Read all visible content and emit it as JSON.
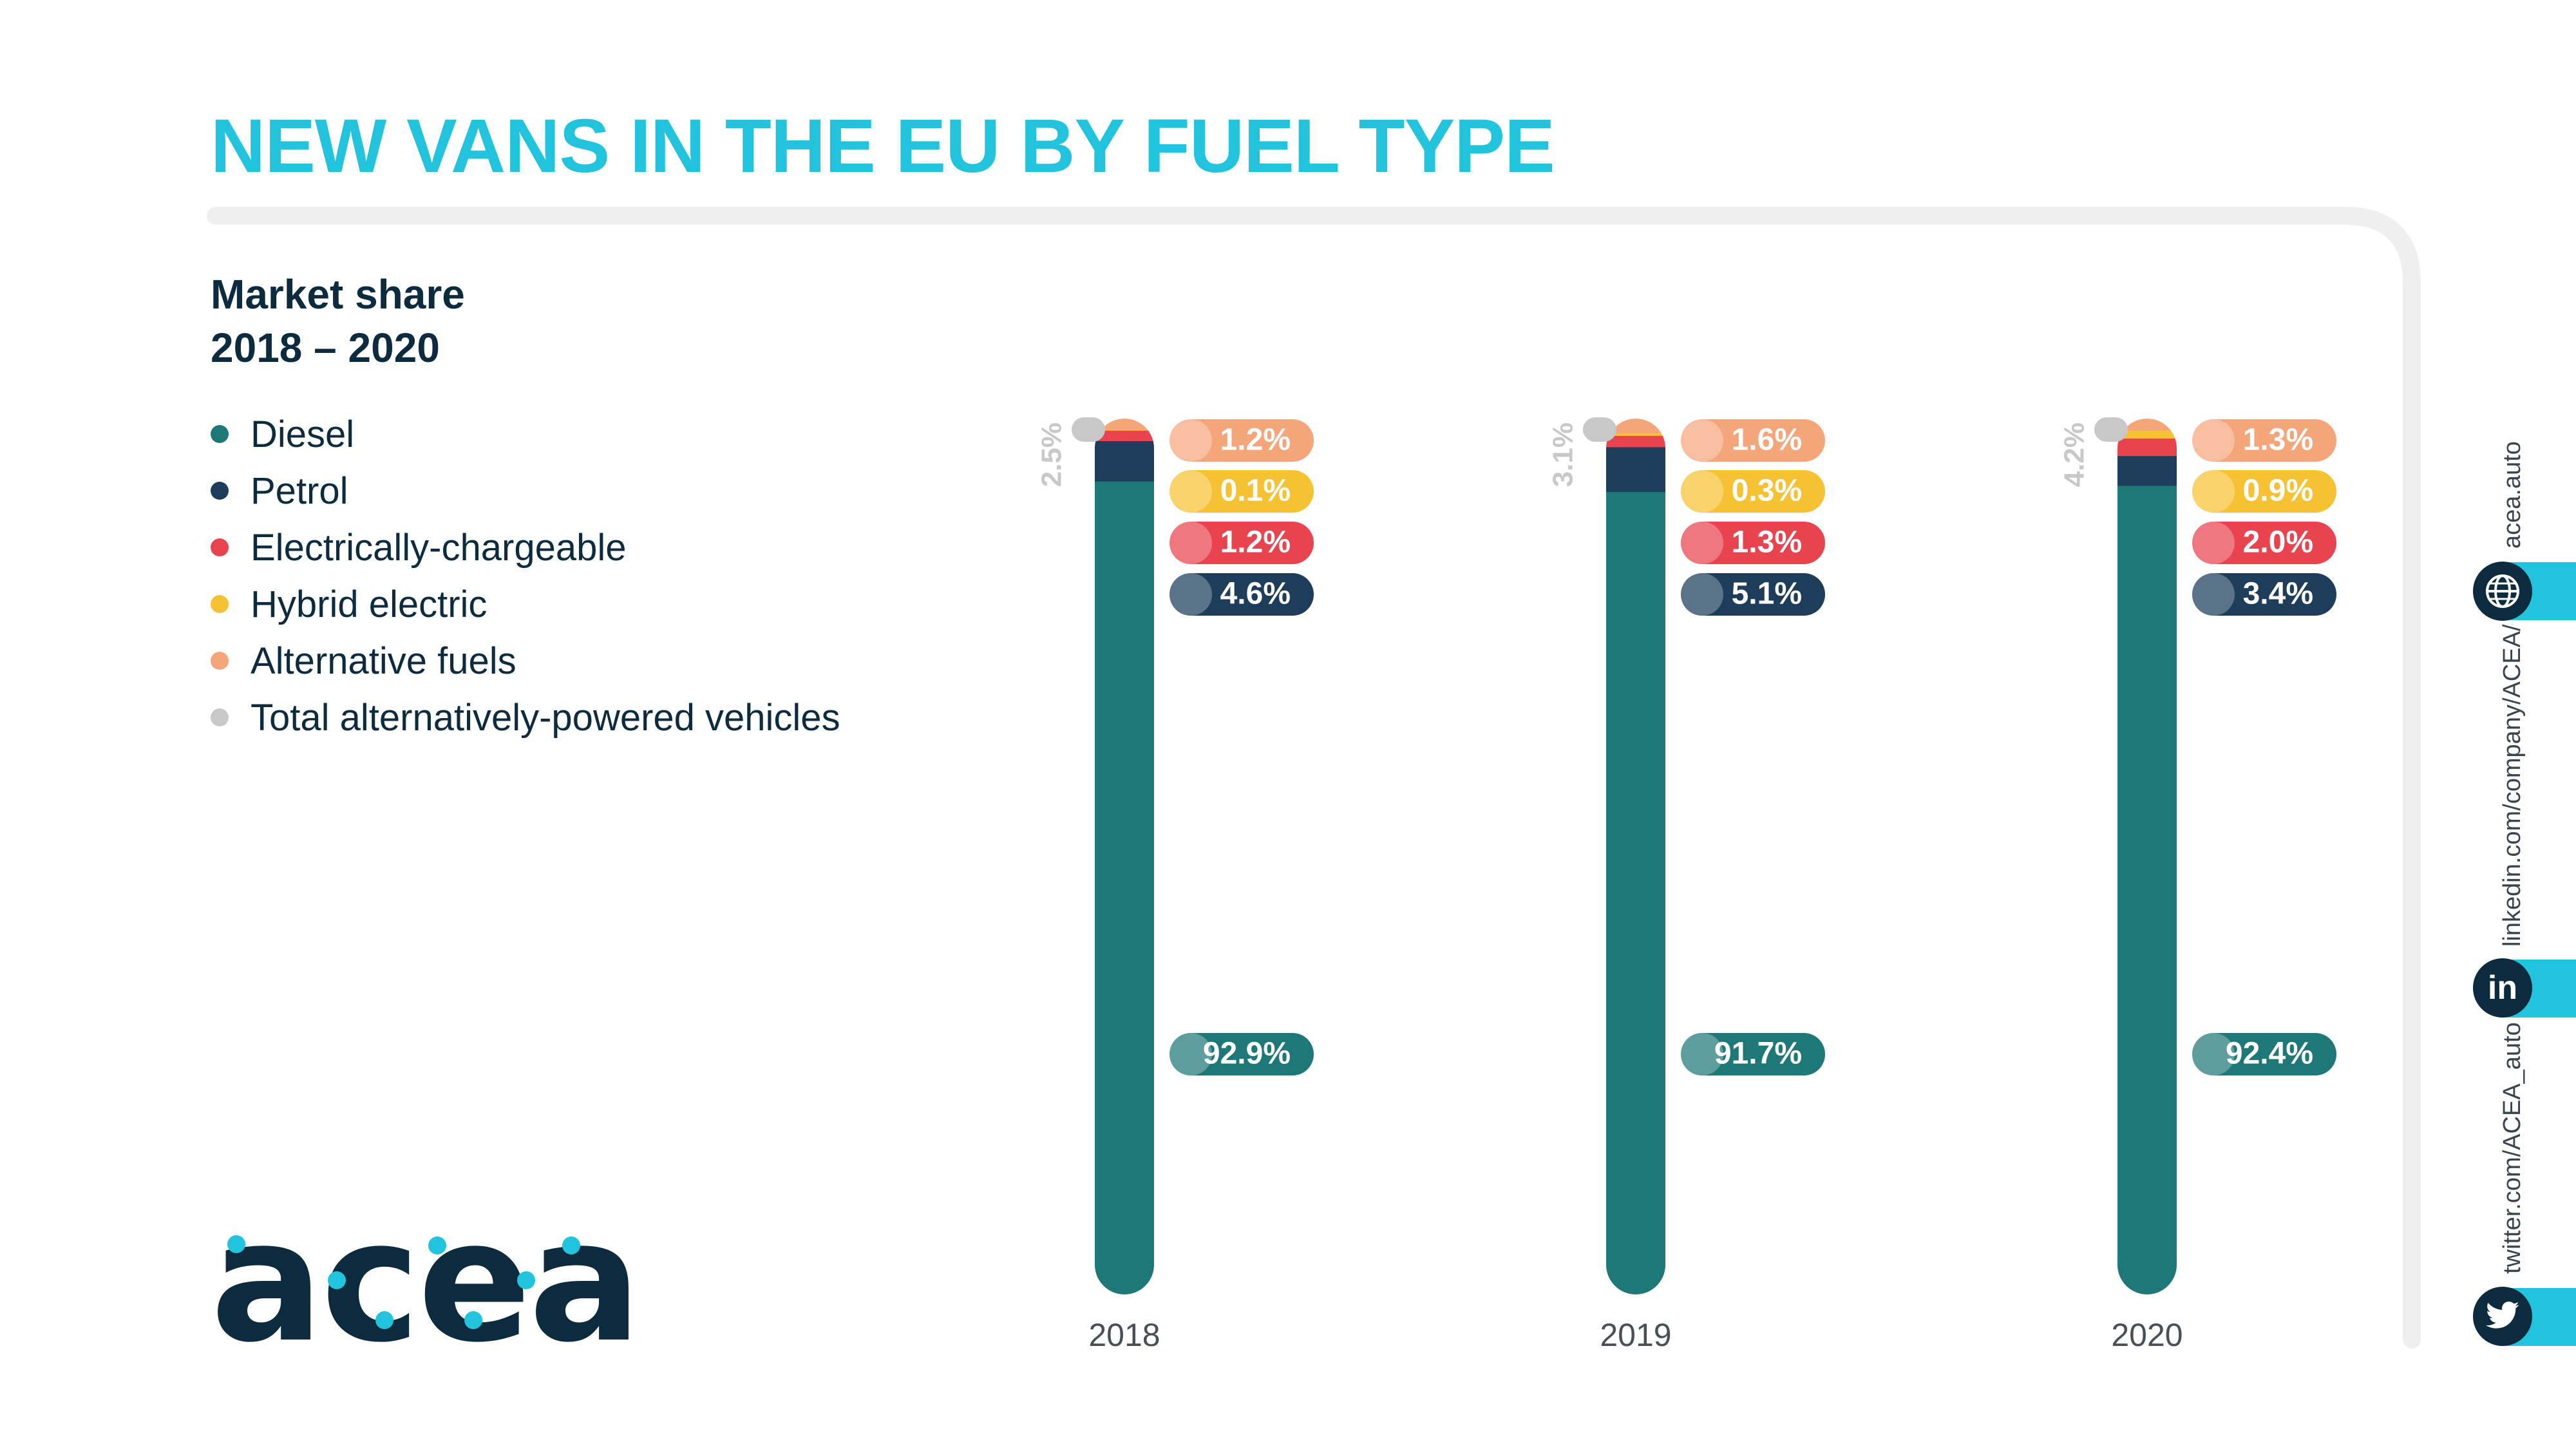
{
  "title": "NEW VANS IN THE EU BY FUEL TYPE",
  "subtitle": {
    "line1": "Market share",
    "line2": "2018 – 2020"
  },
  "legend": [
    {
      "label": "Diesel",
      "color": "#1f7878"
    },
    {
      "label": "Petrol",
      "color": "#1d3d5a"
    },
    {
      "label": "Electrically-chargeable",
      "color": "#e8434f"
    },
    {
      "label": "Hybrid electric",
      "color": "#f6c234"
    },
    {
      "label": "Alternative fuels",
      "color": "#f4a57a"
    },
    {
      "label": "Total alternatively-powered vehicles",
      "color": "#c8c8c8"
    }
  ],
  "chart_data": {
    "type": "bar",
    "stacked": true,
    "categories": [
      "2018",
      "2019",
      "2020"
    ],
    "series": [
      {
        "name": "Diesel",
        "values": [
          92.9,
          91.7,
          92.4
        ],
        "labels": [
          "92.9%",
          "91.7%",
          "92.4%"
        ],
        "color": "#1f7878"
      },
      {
        "name": "Petrol",
        "values": [
          4.6,
          5.1,
          3.4
        ],
        "labels": [
          "4.6%",
          "5.1%",
          "3.4%"
        ],
        "color": "#1d3d5a"
      },
      {
        "name": "Electrically-chargeable",
        "values": [
          1.2,
          1.3,
          2.0
        ],
        "labels": [
          "1.2%",
          "1.3%",
          "2.0%"
        ],
        "color": "#e8434f"
      },
      {
        "name": "Hybrid electric",
        "values": [
          0.1,
          0.3,
          0.9
        ],
        "labels": [
          "0.1%",
          "0.3%",
          "0.9%"
        ],
        "color": "#f6c234"
      },
      {
        "name": "Alternative fuels",
        "values": [
          1.2,
          1.6,
          1.3
        ],
        "labels": [
          "1.2%",
          "1.6%",
          "1.3%"
        ],
        "color": "#f4a57a"
      }
    ],
    "totals_alternatively_powered": {
      "values": [
        2.5,
        3.1,
        4.2
      ],
      "labels": [
        "2.5%",
        "3.1%",
        "4.2%"
      ],
      "color": "#c8c8c8"
    },
    "ylim": [
      0,
      100
    ],
    "grid": false,
    "legend_position": "left"
  },
  "logo": {
    "text": "acea",
    "color": "#0d2b3e",
    "accent": "#22c3dc"
  },
  "social": {
    "website": "acea.auto",
    "linkedin": "linkedin.com/company/ACEA/",
    "twitter": "twitter.com/ACEA_auto",
    "icons": [
      "globe-icon",
      "linkedin-icon",
      "twitter-icon"
    ]
  }
}
